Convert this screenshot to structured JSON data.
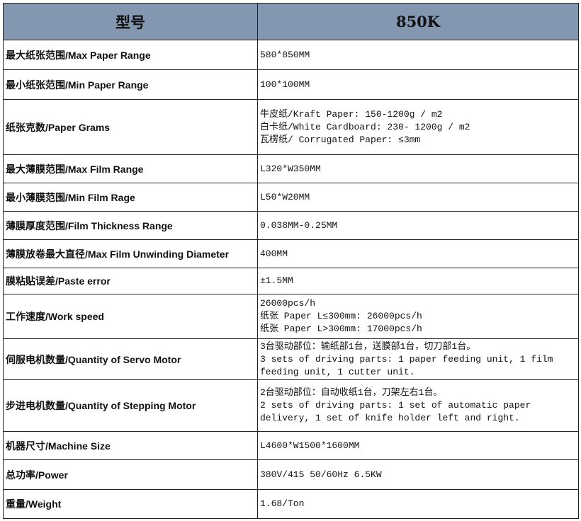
{
  "header": {
    "col1": "型号",
    "col2": "850K"
  },
  "rows": [
    {
      "label": "最大纸张范围/Max Paper Range",
      "value": "580*850MM"
    },
    {
      "label": "最小纸张范围/Min Paper Range",
      "value": "100*100MM"
    },
    {
      "label": "纸张克数/Paper Grams",
      "value": "牛皮纸/Kraft Paper: 150-1200g / m2\n白卡纸/White  Cardboard: 230- 1200g / m2\n瓦楞纸/ Corrugated  Paper: ≤3mm"
    },
    {
      "label": "最大薄膜范围/Max Film Range",
      "value": "L320*W350MM"
    },
    {
      "label": "最小薄膜范围/Min Film Rage",
      "value": "L50*W20MM"
    },
    {
      "label": "薄膜厚度范围/Film Thickness Range",
      "value": "0.038MM-0.25MM"
    },
    {
      "label": "薄膜放卷最大直径/Max Film Unwinding Diameter",
      "value": "400MM"
    },
    {
      "label": "膜粘贴误差/Paste error",
      "value": "±1.5MM"
    },
    {
      "label": "工作速度/Work speed",
      "value": "26000pcs/h\n纸张 Paper L≤300mm: 26000pcs/h\n纸张 Paper L>300mm: 17000pcs/h"
    },
    {
      "label": "伺服电机数量/Quantity of Servo Motor",
      "value": "3台驱动部位：输纸部1台，送膜部1台，切刀部1台。\n3 sets of driving parts: 1 paper feeding unit, 1 film\nfeeding unit, 1 cutter unit."
    },
    {
      "label": "步进电机数量/Quantity of Stepping Motor",
      "value": "2台驱动部位：自动收纸1台，刀架左右1台。\n2 sets of driving parts: 1 set of automatic paper\ndelivery, 1 set of knife holder left and right."
    },
    {
      "label": "机器尺寸/Machine Size",
      "value": "L4600*W1500*1600MM"
    },
    {
      "label": "总功率/Power",
      "value": "380V/415 50/60Hz  6.5KW"
    },
    {
      "label": "重量/Weight",
      "value": "1.68/Ton"
    }
  ]
}
